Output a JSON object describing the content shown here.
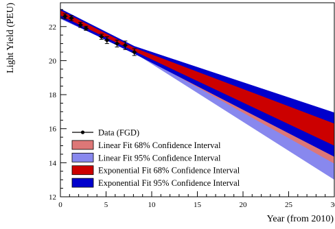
{
  "chart_data": {
    "type": "scatter",
    "xlabel": "Year (from 2010)",
    "ylabel": "Light Yield (PEU)",
    "xlim": [
      0,
      30
    ],
    "ylim": [
      12,
      23.4
    ],
    "xticks": [
      0,
      5,
      10,
      15,
      20,
      25,
      30
    ],
    "yticks": [
      12,
      14,
      16,
      18,
      20,
      22
    ],
    "grid": false,
    "legend_position": "bottom-left",
    "data": {
      "name": "Data (FGD)",
      "x": [
        0.5,
        1.2,
        2.2,
        2.8,
        4.5,
        5.1,
        6.2,
        7.1,
        8.1
      ],
      "y": [
        22.6,
        22.5,
        22.1,
        21.9,
        21.4,
        21.2,
        21.0,
        20.9,
        20.5
      ],
      "err": [
        0.15,
        0.15,
        0.15,
        0.12,
        0.15,
        0.2,
        0.2,
        0.25,
        0.2
      ]
    },
    "bands": [
      {
        "name": "Linear Fit 95% Confidence Interval",
        "color": "#8888ee",
        "x": [
          0,
          8.1,
          30
        ],
        "upper": [
          23.0,
          20.75,
          15.7
        ],
        "lower": [
          22.45,
          20.45,
          13.0
        ]
      },
      {
        "name": "Linear Fit 68% Confidence Interval",
        "color": "#dd7777",
        "x": [
          0,
          8.1,
          30
        ],
        "upper": [
          22.9,
          20.65,
          15.1
        ],
        "lower": [
          22.6,
          20.5,
          13.95
        ]
      },
      {
        "name": "Exponential Fit 95% Confidence Interval",
        "color": "#0000cc",
        "x": [
          0,
          8.1,
          30
        ],
        "upper": [
          23.05,
          20.85,
          16.95
        ],
        "lower": [
          22.5,
          20.4,
          14.35
        ]
      },
      {
        "name": "Exponential Fit 68% Confidence Interval",
        "color": "#cc0000",
        "x": [
          0,
          8.1,
          30
        ],
        "upper": [
          22.95,
          20.75,
          16.3
        ],
        "lower": [
          22.65,
          20.55,
          15.0
        ]
      }
    ],
    "legend": [
      {
        "label": "Data (FGD)",
        "kind": "marker"
      },
      {
        "label": "Linear Fit 68% Confidence Interval",
        "kind": "box",
        "color": "#dd7777"
      },
      {
        "label": "Linear Fit 95% Confidence Interval",
        "kind": "box",
        "color": "#8888ee"
      },
      {
        "label": "Exponential Fit 68% Confidence Interval",
        "kind": "box",
        "color": "#cc0000"
      },
      {
        "label": "Exponential Fit 95% Confidence Interval",
        "kind": "box",
        "color": "#0000cc"
      }
    ]
  }
}
